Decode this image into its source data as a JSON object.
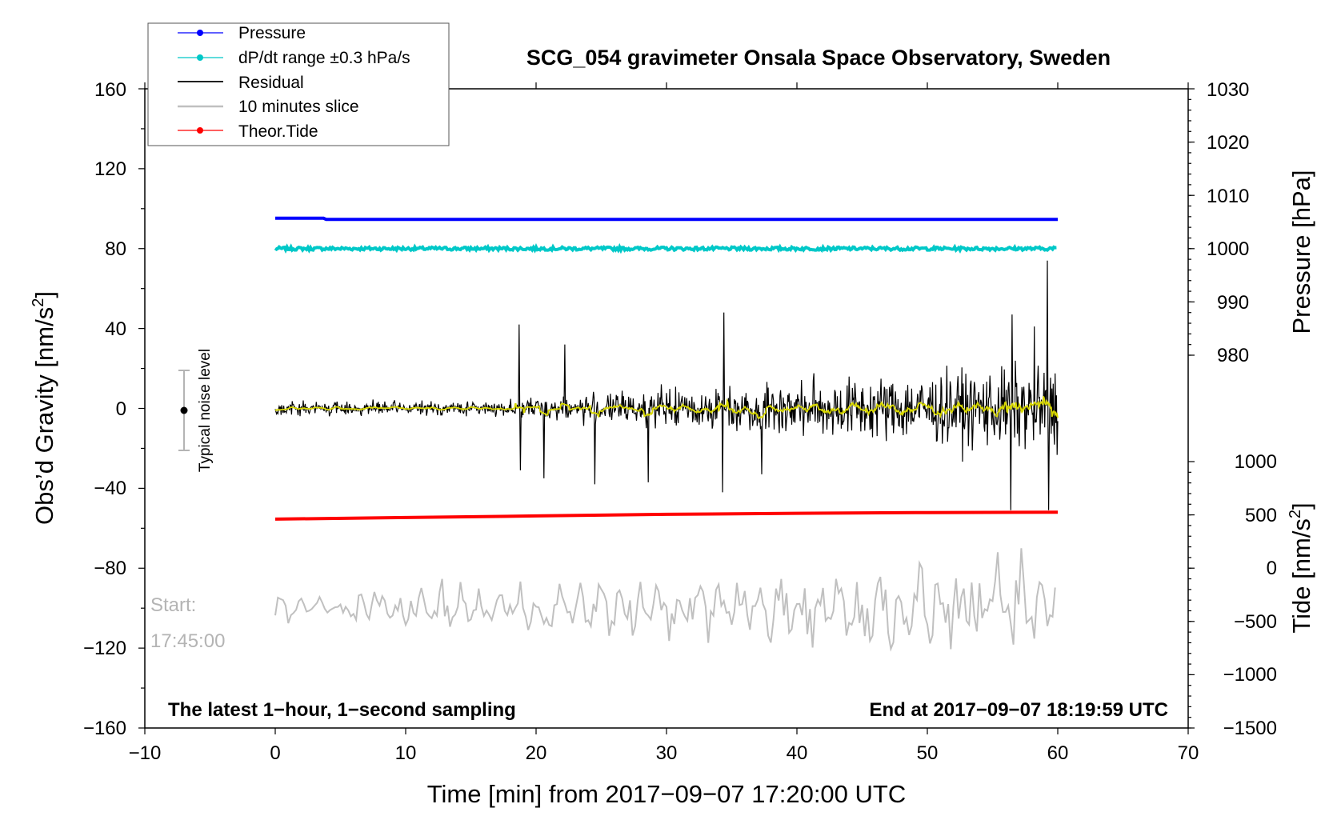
{
  "chart_data": {
    "type": "line",
    "title": "SCG_054 gravimeter Onsala Space Observatory, Sweden",
    "xlabel": "Time [min] from 2017−09−07 17:20:00 UTC",
    "ylabel_left": "Obs’d Gravity [nm/s",
    "ylabel_left_sup": "2",
    "ylabel_left_end": "]",
    "ylabel_right_pressure": "Pressure [hPa]",
    "ylabel_right_tide": "Tide [nm/s",
    "ylabel_right_tide_sup": "2",
    "ylabel_right_tide_end": "]",
    "xlim": [
      -10,
      70
    ],
    "ylim": [
      -160,
      160
    ],
    "x_ticks": [
      "−10",
      "0",
      "10",
      "20",
      "30",
      "40",
      "50",
      "60",
      "70"
    ],
    "y_ticks": [
      "−160",
      "−120",
      "−80",
      "−40",
      "0",
      "40",
      "80",
      "120",
      "160"
    ],
    "pressure_ticks": [
      "980",
      "990",
      "1000",
      "1010",
      "1020",
      "1030"
    ],
    "tide_ticks": [
      "−1500",
      "−1000",
      "−500",
      "0",
      "500",
      "1000"
    ],
    "legend": [
      {
        "name": "Pressure",
        "color": "#0000ff"
      },
      {
        "name": "dP/dt range ±0.3 hPa/s",
        "color": "#00c8c8"
      },
      {
        "name": "Residual",
        "color": "#000000"
      },
      {
        "name": "10 minutes slice",
        "color": "#c0c0c0"
      },
      {
        "name": "Theor.Tide",
        "color": "#ff0000"
      }
    ],
    "series": [
      {
        "name": "Pressure",
        "axis": "pressure_hPa",
        "x": [
          0,
          3.7,
          3.9,
          60
        ],
        "values": [
          1005.7,
          1005.7,
          1005.5,
          1005.5
        ]
      },
      {
        "name": "dP/dt range ±0.3 hPa/s",
        "axis": "gravity_nm_s2",
        "x": [
          0,
          60
        ],
        "values": [
          80,
          80
        ]
      },
      {
        "name": "Theor.Tide",
        "axis": "tide_nm_s2",
        "x": [
          0,
          10,
          20,
          30,
          40,
          50,
          60
        ],
        "values": [
          460,
          475,
          490,
          505,
          515,
          522,
          525
        ]
      },
      {
        "name": "Residual",
        "axis": "gravity_nm_s2",
        "x_range": [
          0,
          60
        ],
        "approx_extremes": {
          "min": -51,
          "max": 74
        }
      },
      {
        "name": "10 minutes slice",
        "axis": "gravity_nm_s2",
        "x_range": [
          0,
          60
        ],
        "center": -100
      }
    ],
    "noise_indicator": {
      "label": "Typical noise level",
      "x": -7,
      "center": 0,
      "range": [
        -20,
        20
      ]
    },
    "annotations": {
      "bottom_left": "The latest 1−hour, 1−second sampling",
      "bottom_right": "End at 2017−09−07 18:19:59 UTC",
      "start_label": "Start:",
      "start_time": "17:45:00"
    }
  }
}
